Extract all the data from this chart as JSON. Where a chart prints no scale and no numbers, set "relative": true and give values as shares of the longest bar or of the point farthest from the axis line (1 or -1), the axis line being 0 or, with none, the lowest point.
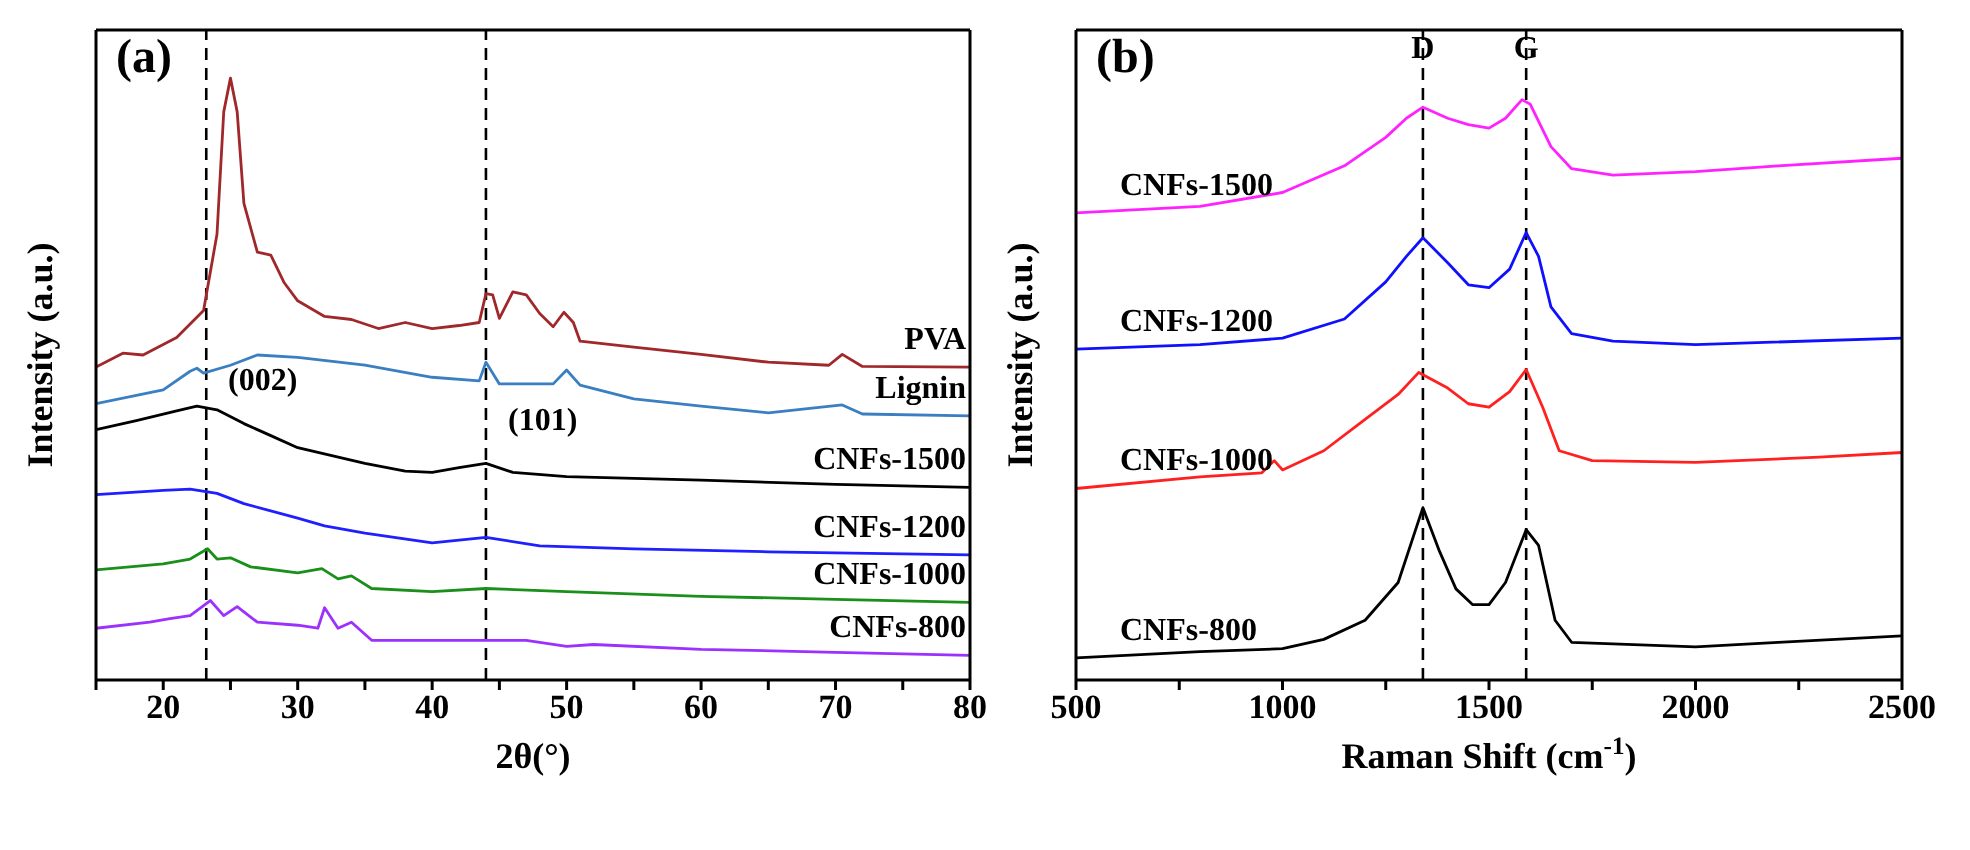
{
  "chart_data": [
    {
      "type": "line",
      "title": "(a)",
      "xlabel": "2θ(°)",
      "ylabel": "Intensity (a.u.)",
      "relative": true,
      "xlim": [
        15,
        80
      ],
      "xticks": [
        {
          "value": 15,
          "label": null
        },
        20,
        {
          "value": 25,
          "label": null
        },
        30,
        {
          "value": 35,
          "label": null
        },
        40,
        {
          "value": 45,
          "label": null
        },
        50,
        {
          "value": 55,
          "label": null
        },
        60,
        {
          "value": 65,
          "label": null
        },
        70,
        {
          "value": 75,
          "label": null
        },
        80
      ],
      "series": [
        {
          "name": "PVA",
          "color": "#a0282a",
          "x": [
            15,
            17,
            18.5,
            21,
            23,
            24,
            24.5,
            25,
            25.5,
            26,
            27,
            28,
            29,
            30,
            32,
            34,
            36,
            38,
            40,
            42,
            43.5,
            44,
            44.5,
            45,
            46,
            47,
            48,
            49,
            49.8,
            50.5,
            51,
            55,
            60,
            65,
            69.5,
            70.5,
            72,
            80
          ],
          "values": [
            0.52,
            0.543,
            0.54,
            0.569,
            0.614,
            0.741,
            0.944,
            1.0,
            0.944,
            0.792,
            0.711,
            0.706,
            0.66,
            0.63,
            0.604,
            0.599,
            0.584,
            0.594,
            0.584,
            0.589,
            0.594,
            0.642,
            0.64,
            0.601,
            0.645,
            0.64,
            0.609,
            0.587,
            0.611,
            0.594,
            0.563,
            0.553,
            0.541,
            0.528,
            0.523,
            0.541,
            0.521,
            0.52
          ]
        },
        {
          "name": "Lignin",
          "color": "#3a7fc1",
          "x": [
            15,
            20,
            22,
            22.5,
            23,
            25,
            27,
            30,
            35,
            40,
            43.5,
            44,
            45,
            49,
            50,
            51,
            55,
            60,
            65,
            70.5,
            72,
            80
          ],
          "values": [
            0.459,
            0.482,
            0.513,
            0.518,
            0.51,
            0.523,
            0.54,
            0.536,
            0.523,
            0.503,
            0.497,
            0.528,
            0.492,
            0.492,
            0.515,
            0.49,
            0.467,
            0.455,
            0.444,
            0.457,
            0.442,
            0.439
          ]
        },
        {
          "name": "CNFs-1500",
          "color": "#000000",
          "x": [
            15,
            18,
            21,
            22.5,
            24,
            26,
            28,
            30,
            35,
            38,
            40,
            42,
            44,
            46,
            50,
            60,
            70,
            80
          ],
          "values": [
            0.416,
            0.431,
            0.447,
            0.455,
            0.449,
            0.426,
            0.406,
            0.386,
            0.36,
            0.347,
            0.345,
            0.353,
            0.36,
            0.345,
            0.338,
            0.332,
            0.325,
            0.32
          ]
        },
        {
          "name": "CNFs-1200",
          "color": "#1f1fff",
          "x": [
            15,
            20,
            22,
            24,
            26,
            30,
            32,
            35,
            40,
            44,
            48,
            55,
            65,
            80
          ],
          "values": [
            0.308,
            0.315,
            0.317,
            0.31,
            0.293,
            0.269,
            0.256,
            0.244,
            0.228,
            0.237,
            0.223,
            0.218,
            0.213,
            0.208
          ]
        },
        {
          "name": "CNFs-1000",
          "color": "#1a8f1a",
          "x": [
            15,
            20,
            22,
            23.3,
            24,
            25,
            26.5,
            30,
            31.8,
            33,
            34,
            35.5,
            40,
            44,
            50,
            60,
            70,
            80
          ],
          "values": [
            0.183,
            0.193,
            0.201,
            0.218,
            0.201,
            0.203,
            0.188,
            0.178,
            0.185,
            0.168,
            0.173,
            0.152,
            0.147,
            0.152,
            0.147,
            0.139,
            0.134,
            0.129
          ]
        },
        {
          "name": "CNFs-800",
          "color": "#9b30ff",
          "x": [
            15,
            19,
            20.5,
            22,
            23.5,
            24.5,
            25.5,
            27,
            30,
            31.5,
            32,
            33,
            34,
            35.5,
            40,
            47,
            50,
            52,
            60,
            70,
            80
          ],
          "values": [
            0.086,
            0.096,
            0.102,
            0.107,
            0.132,
            0.107,
            0.122,
            0.096,
            0.091,
            0.086,
            0.12,
            0.086,
            0.096,
            0.066,
            0.066,
            0.066,
            0.056,
            0.059,
            0.051,
            0.046,
            0.041
          ]
        }
      ],
      "annotations": [
        "(002)",
        "(101)"
      ],
      "ref_lines": [
        {
          "axis": "x",
          "value": 23.2,
          "color": "#000000",
          "line_style": "dashed"
        },
        {
          "axis": "x",
          "value": 44,
          "color": "#000000",
          "line_style": "dashed"
        }
      ]
    },
    {
      "type": "line",
      "title": "(b)",
      "xlabel": "Raman Shift (cm$^{-1}$)",
      "ylabel": "Intensity (a.u.)",
      "relative": true,
      "xlim": [
        500,
        2500
      ],
      "xticks": [
        500,
        {
          "value": 750,
          "label": null
        },
        1000,
        {
          "value": 1250,
          "label": null
        },
        1500,
        {
          "value": 1750,
          "label": null
        },
        2000,
        {
          "value": 2250,
          "label": null
        },
        2500
      ],
      "series": [
        {
          "name": "CNFs-1500",
          "color": "#ff22ff",
          "x": [
            500,
            800,
            1000,
            1150,
            1250,
            1300,
            1340,
            1400,
            1450,
            1500,
            1540,
            1580,
            1600,
            1650,
            1700,
            1800,
            2000,
            2200,
            2500
          ],
          "values": [
            0.805,
            0.816,
            0.84,
            0.886,
            0.935,
            0.968,
            0.987,
            0.968,
            0.957,
            0.951,
            0.968,
            1.0,
            0.992,
            0.919,
            0.881,
            0.87,
            0.876,
            0.886,
            0.899
          ]
        },
        {
          "name": "CNFs-1200",
          "color": "#1010ff",
          "x": [
            500,
            800,
            1000,
            1150,
            1250,
            1300,
            1340,
            1400,
            1450,
            1500,
            1550,
            1590,
            1620,
            1650,
            1700,
            1800,
            2000,
            2500
          ],
          "values": [
            0.57,
            0.578,
            0.589,
            0.622,
            0.686,
            0.73,
            0.762,
            0.719,
            0.681,
            0.676,
            0.708,
            0.771,
            0.73,
            0.643,
            0.597,
            0.584,
            0.578,
            0.589
          ]
        },
        {
          "name": "CNFs-1000",
          "color": "#ff2020",
          "x": [
            500,
            800,
            950,
            980,
            1000,
            1100,
            1200,
            1280,
            1330,
            1400,
            1450,
            1500,
            1550,
            1590,
            1630,
            1670,
            1750,
            2000,
            2300,
            2500
          ],
          "values": [
            0.33,
            0.35,
            0.357,
            0.378,
            0.362,
            0.395,
            0.449,
            0.492,
            0.53,
            0.503,
            0.476,
            0.47,
            0.497,
            0.535,
            0.47,
            0.395,
            0.378,
            0.375,
            0.384,
            0.392
          ]
        },
        {
          "name": "CNFs-800",
          "color": "#000000",
          "x": [
            500,
            800,
            1000,
            1100,
            1200,
            1280,
            1340,
            1380,
            1420,
            1460,
            1500,
            1540,
            1590,
            1620,
            1660,
            1700,
            2000,
            2200,
            2500
          ],
          "values": [
            0.038,
            0.049,
            0.054,
            0.07,
            0.103,
            0.168,
            0.297,
            0.222,
            0.157,
            0.13,
            0.13,
            0.168,
            0.259,
            0.232,
            0.103,
            0.065,
            0.057,
            0.065,
            0.076
          ]
        }
      ],
      "ref_lines": [
        {
          "axis": "x",
          "value": 1340,
          "label": "D",
          "color": "#000000",
          "line_style": "dashed"
        },
        {
          "axis": "x",
          "value": 1590,
          "label": "G",
          "color": "#000000",
          "line_style": "dashed"
        }
      ]
    }
  ]
}
